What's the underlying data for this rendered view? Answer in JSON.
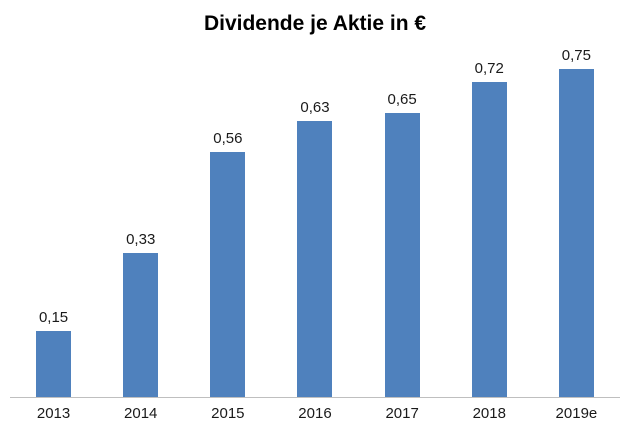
{
  "chart_data": {
    "type": "bar",
    "title": "Dividende je Aktie in €",
    "categories": [
      "2013",
      "2014",
      "2015",
      "2016",
      "2017",
      "2018",
      "2019e"
    ],
    "values": [
      0.15,
      0.33,
      0.56,
      0.63,
      0.65,
      0.72,
      0.75
    ],
    "value_labels": [
      "0,15",
      "0,33",
      "0,56",
      "0,63",
      "0,65",
      "0,72",
      "0,75"
    ],
    "xlabel": "",
    "ylabel": "",
    "ylim": [
      0,
      0.8
    ],
    "grid": false,
    "legend": false,
    "bar_color": "#4f81bd",
    "axis_line_color": "#bfbfbf",
    "background_color": "#ffffff",
    "data_labels_shown": true,
    "decimal_separator": ","
  }
}
